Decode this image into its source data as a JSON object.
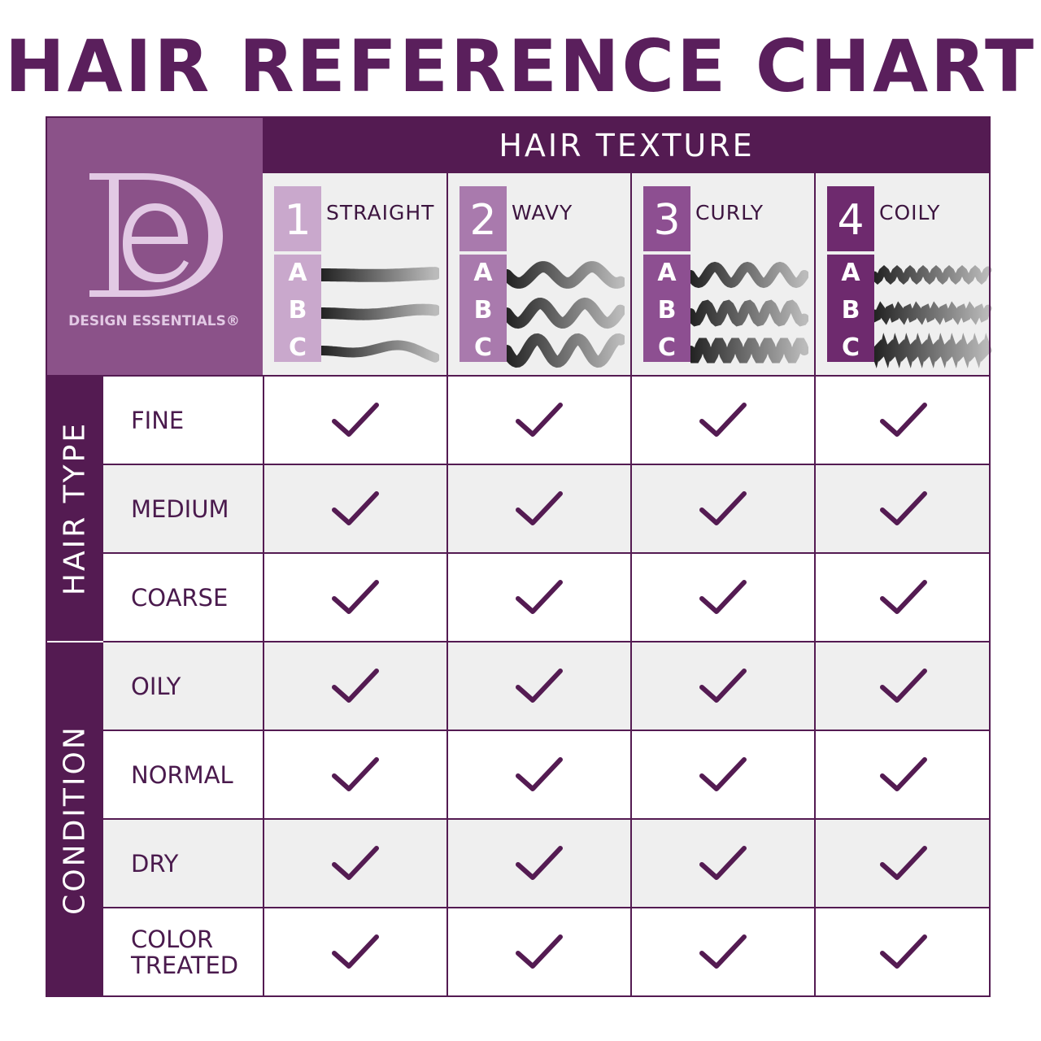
{
  "title": "HAIR REFERENCE CHART",
  "brand": {
    "name": "DESIGN ESSENTIALS®",
    "logo_letters": "DE",
    "color": "#8b5289"
  },
  "texture_header": "HAIR TEXTURE",
  "textures": [
    {
      "number": "1",
      "name": "STRAIGHT",
      "subtypes": [
        "A",
        "B",
        "C"
      ],
      "color": "#c9a8cc"
    },
    {
      "number": "2",
      "name": "WAVY",
      "subtypes": [
        "A",
        "B",
        "C"
      ],
      "color": "#a97aad"
    },
    {
      "number": "3",
      "name": "CURLY",
      "subtypes": [
        "A",
        "B",
        "C"
      ],
      "color": "#8d4f91"
    },
    {
      "number": "4",
      "name": "COILY",
      "subtypes": [
        "A",
        "B",
        "C"
      ],
      "color": "#6e2a6e"
    }
  ],
  "groups": [
    {
      "label": "HAIR TYPE"
    },
    {
      "label": "CONDITION"
    }
  ],
  "rows": [
    {
      "label": "FINE",
      "checks": [
        true,
        true,
        true,
        true
      ]
    },
    {
      "label": "MEDIUM",
      "checks": [
        true,
        true,
        true,
        true
      ]
    },
    {
      "label": "COARSE",
      "checks": [
        true,
        true,
        true,
        true
      ]
    },
    {
      "label": "OILY",
      "checks": [
        true,
        true,
        true,
        true
      ]
    },
    {
      "label": "NORMAL",
      "checks": [
        true,
        true,
        true,
        true
      ]
    },
    {
      "label": "DRY",
      "checks": [
        true,
        true,
        true,
        true
      ]
    },
    {
      "label": "COLOR TREATED",
      "checks": [
        true,
        true,
        true,
        true
      ]
    }
  ],
  "check_icon": "checkmark-icon",
  "colors": {
    "primary": "#541b52",
    "title": "#5a1f5c",
    "alt_row": "#efefef"
  }
}
